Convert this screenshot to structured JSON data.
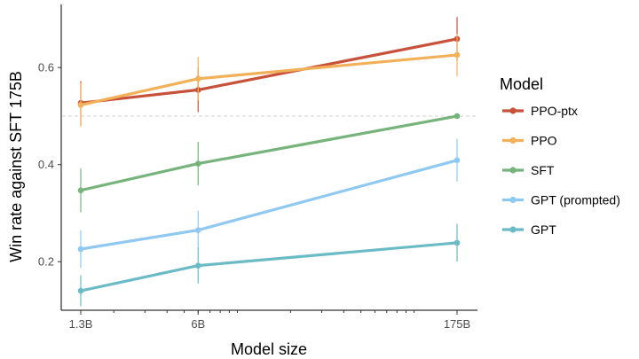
{
  "chart_data": {
    "type": "line",
    "xscale": "log",
    "x_ticks": [
      {
        "label": "1.3B",
        "value": 1.3
      },
      {
        "label": "6B",
        "value": 6
      },
      {
        "label": "175B",
        "value": 175
      }
    ],
    "x": [
      1.3,
      6,
      175
    ],
    "xlabel": "Model size",
    "ylabel": "Win rate against SFT 175B",
    "ylim": [
      0.1,
      0.73
    ],
    "y_ticks": [
      0.2,
      0.4,
      0.6
    ],
    "y_tick_labels": [
      "0.2",
      "0.4",
      "0.6"
    ],
    "reference_line_y": 0.5,
    "legend_title": "Model",
    "legend_position": "right",
    "grid": false,
    "series": [
      {
        "name": "PPO-ptx",
        "color": "#c8513a",
        "values": [
          0.527,
          0.554,
          0.659
        ],
        "err_low": [
          0.482,
          0.508,
          0.614
        ],
        "err_high": [
          0.572,
          0.6,
          0.704
        ]
      },
      {
        "name": "PPO",
        "color": "#f2b058",
        "values": [
          0.523,
          0.577,
          0.626
        ],
        "err_low": [
          0.478,
          0.532,
          0.582
        ],
        "err_high": [
          0.568,
          0.622,
          0.67
        ]
      },
      {
        "name": "SFT",
        "color": "#76b47c",
        "values": [
          0.347,
          0.402,
          0.5
        ],
        "err_low": [
          0.302,
          0.357,
          0.5
        ],
        "err_high": [
          0.392,
          0.447,
          0.5
        ]
      },
      {
        "name": "GPT (prompted)",
        "color": "#8fc9f2",
        "values": [
          0.226,
          0.265,
          0.409
        ],
        "err_low": [
          0.187,
          0.226,
          0.365
        ],
        "err_high": [
          0.265,
          0.305,
          0.453
        ]
      },
      {
        "name": "GPT",
        "color": "#6bbbc6",
        "values": [
          0.14,
          0.192,
          0.239
        ],
        "err_low": [
          0.108,
          0.155,
          0.2
        ],
        "err_high": [
          0.172,
          0.229,
          0.278
        ]
      }
    ]
  }
}
